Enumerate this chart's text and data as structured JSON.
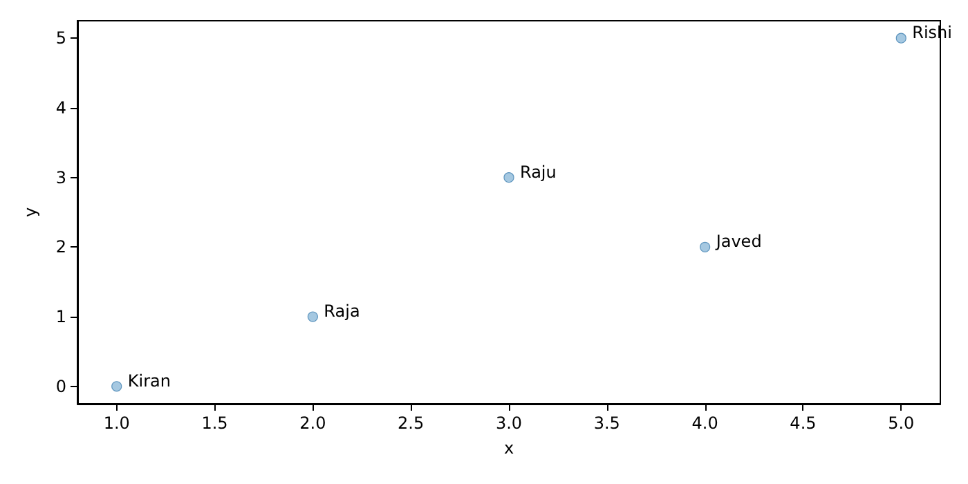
{
  "chart_data": {
    "type": "scatter",
    "xlabel": "x",
    "ylabel": "y",
    "x": [
      1,
      2,
      3,
      4,
      5
    ],
    "series": [
      {
        "color": "#8ebad9",
        "values": [
          0,
          1,
          3,
          2,
          5
        ]
      }
    ],
    "xlim": [
      0.8,
      5.2
    ],
    "xticks": [
      {
        "value": 1,
        "label": "1.0"
      },
      {
        "value": 1.5,
        "label": "1.5"
      },
      {
        "value": 2,
        "label": "2.0"
      },
      {
        "value": 2.5,
        "label": "2.5"
      },
      {
        "value": 3,
        "label": "3.0"
      },
      {
        "value": 3.5,
        "label": "3.5"
      },
      {
        "value": 4,
        "label": "4.0"
      },
      {
        "value": 4.5,
        "label": "4.5"
      },
      {
        "value": 5,
        "label": "5.0"
      }
    ],
    "ylim": [
      -0.25,
      5.25
    ],
    "yticks": [
      0,
      1,
      2,
      3,
      4,
      5
    ],
    "annotations": [
      {
        "text": "Kiran",
        "x": 1,
        "y": 0
      },
      {
        "text": "Raja",
        "x": 2,
        "y": 1
      },
      {
        "text": "Raju",
        "x": 3,
        "y": 3
      },
      {
        "text": "Javed",
        "x": 4,
        "y": 2
      },
      {
        "text": "Rishi",
        "x": 5,
        "y": 5
      }
    ],
    "grid": false,
    "marker": "circle"
  }
}
